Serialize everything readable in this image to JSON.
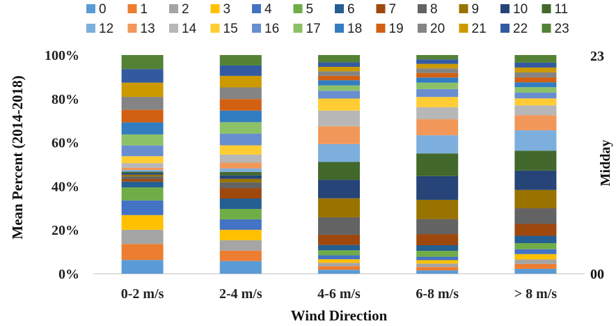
{
  "chart_data": {
    "type": "bar",
    "stacked": true,
    "categories": [
      "0-2 m/s",
      "2-4 m/s",
      "4-6 m/s",
      "6-8 m/s",
      "> 8 m/s"
    ],
    "xlabel": "Wind Direction",
    "ylabel": "Mean Percent (2014-2018)",
    "right_label": "Midday",
    "right_top_label": "23",
    "right_bottom_label": "00",
    "ylim": [
      0,
      100
    ],
    "yticks": [
      "0%",
      "20%",
      "40%",
      "60%",
      "80%",
      "100%"
    ],
    "grid": false,
    "legend_position": "top",
    "series": [
      {
        "name": "0",
        "color": "#5B9BD5",
        "values": [
          6.4,
          5.5,
          1.8,
          1.5,
          2.2
        ]
      },
      {
        "name": "1",
        "color": "#ED7D31",
        "values": [
          7.4,
          4.5,
          1.6,
          1.5,
          2.2
        ]
      },
      {
        "name": "2",
        "color": "#A5A5A5",
        "values": [
          6.6,
          4.5,
          1.5,
          1.5,
          2.0
        ]
      },
      {
        "name": "3",
        "color": "#FFC000",
        "values": [
          6.8,
          4.5,
          1.6,
          1.5,
          2.4
        ]
      },
      {
        "name": "4",
        "color": "#4472C4",
        "values": [
          6.8,
          4.5,
          1.8,
          1.5,
          2.2
        ]
      },
      {
        "name": "5",
        "color": "#70AD47",
        "values": [
          6.0,
          4.5,
          2.2,
          2.6,
          2.7
        ]
      },
      {
        "name": "6",
        "color": "#255E91",
        "values": [
          2.7,
          4.5,
          2.4,
          2.5,
          3.3
        ]
      },
      {
        "name": "7",
        "color": "#9E480E",
        "values": [
          1.2,
          4.5,
          4.6,
          4.9,
          5.3
        ]
      },
      {
        "name": "8",
        "color": "#636363",
        "values": [
          1.2,
          2.5,
          7.8,
          6.6,
          7.0
        ]
      },
      {
        "name": "9",
        "color": "#997300",
        "values": [
          0.8,
          1.5,
          8.5,
          8.5,
          8.2
        ]
      },
      {
        "name": "10",
        "color": "#264478",
        "values": [
          0.8,
          1.5,
          8.3,
          10.5,
          8.7
        ]
      },
      {
        "name": "11",
        "color": "#43682B",
        "values": [
          0.6,
          1.5,
          8.0,
          10.0,
          8.9
        ]
      },
      {
        "name": "12",
        "color": "#7CAFDD",
        "values": [
          0.8,
          1.5,
          8.0,
          8.0,
          9.1
        ]
      },
      {
        "name": "13",
        "color": "#F1975A",
        "values": [
          1.0,
          2.5,
          8.0,
          7.1,
          6.8
        ]
      },
      {
        "name": "14",
        "color": "#B7B7B7",
        "values": [
          2.2,
          3.5,
          7.0,
          5.3,
          4.4
        ]
      },
      {
        "name": "15",
        "color": "#FFCD33",
        "values": [
          3.2,
          4.0,
          5.4,
          4.5,
          3.1
        ]
      },
      {
        "name": "16",
        "color": "#698ED0",
        "values": [
          5.0,
          5.0,
          3.5,
          3.5,
          2.6
        ]
      },
      {
        "name": "17",
        "color": "#8CC168",
        "values": [
          5.1,
          5.0,
          2.4,
          2.8,
          2.4
        ]
      },
      {
        "name": "18",
        "color": "#327DC2",
        "values": [
          5.6,
          5.0,
          2.3,
          2.3,
          2.2
        ]
      },
      {
        "name": "19",
        "color": "#D26012",
        "values": [
          5.8,
          5.0,
          2.0,
          2.0,
          2.2
        ]
      },
      {
        "name": "20",
        "color": "#848484",
        "values": [
          6.0,
          5.0,
          2.0,
          2.0,
          2.2
        ]
      },
      {
        "name": "21",
        "color": "#CC9A00",
        "values": [
          6.6,
          5.0,
          2.0,
          2.0,
          2.2
        ]
      },
      {
        "name": "22",
        "color": "#335AA1",
        "values": [
          6.3,
          4.5,
          2.0,
          2.0,
          2.2
        ]
      },
      {
        "name": "23",
        "color": "#548235",
        "values": [
          6.5,
          4.5,
          3.3,
          1.9,
          3.4
        ]
      }
    ]
  }
}
